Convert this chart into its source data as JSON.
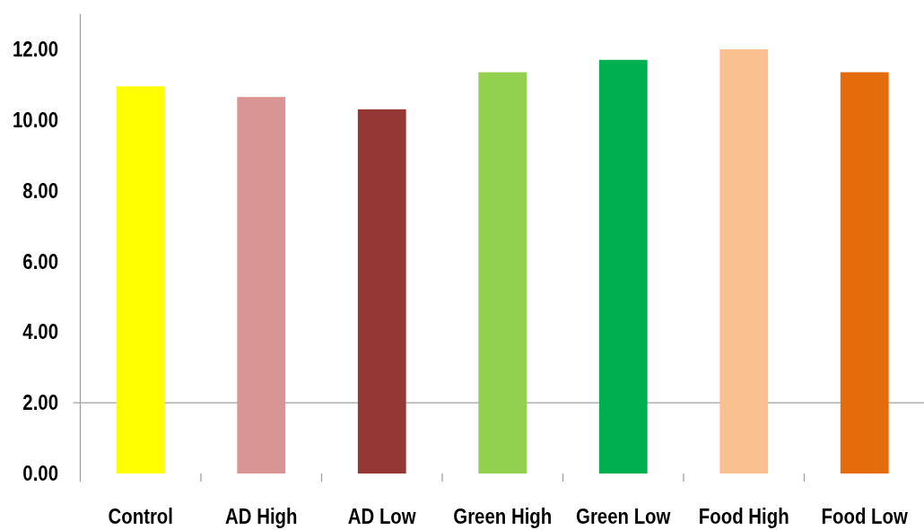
{
  "chart_data": {
    "type": "bar",
    "categories": [
      "Control",
      "AD High",
      "AD Low",
      "Green High",
      "Green Low",
      "Food High",
      "Food Low"
    ],
    "values": [
      10.95,
      10.65,
      10.3,
      11.35,
      11.7,
      12.0,
      11.35
    ],
    "colors": [
      "#ffff00",
      "#d99594",
      "#953735",
      "#92d050",
      "#00b050",
      "#fac090",
      "#e46c0a"
    ],
    "ylim": [
      0,
      13
    ],
    "yticks": [
      {
        "value": 0,
        "label": "0.00"
      },
      {
        "value": 2,
        "label": "2.00"
      },
      {
        "value": 4,
        "label": "4.00"
      },
      {
        "value": 6,
        "label": "6.00"
      },
      {
        "value": 8,
        "label": "8.00"
      },
      {
        "value": 10,
        "label": "10.00"
      },
      {
        "value": 12,
        "label": "12.00"
      }
    ],
    "ref_lines": [
      {
        "axis": "y",
        "value": 2,
        "color": "#a0a0a0"
      }
    ]
  }
}
